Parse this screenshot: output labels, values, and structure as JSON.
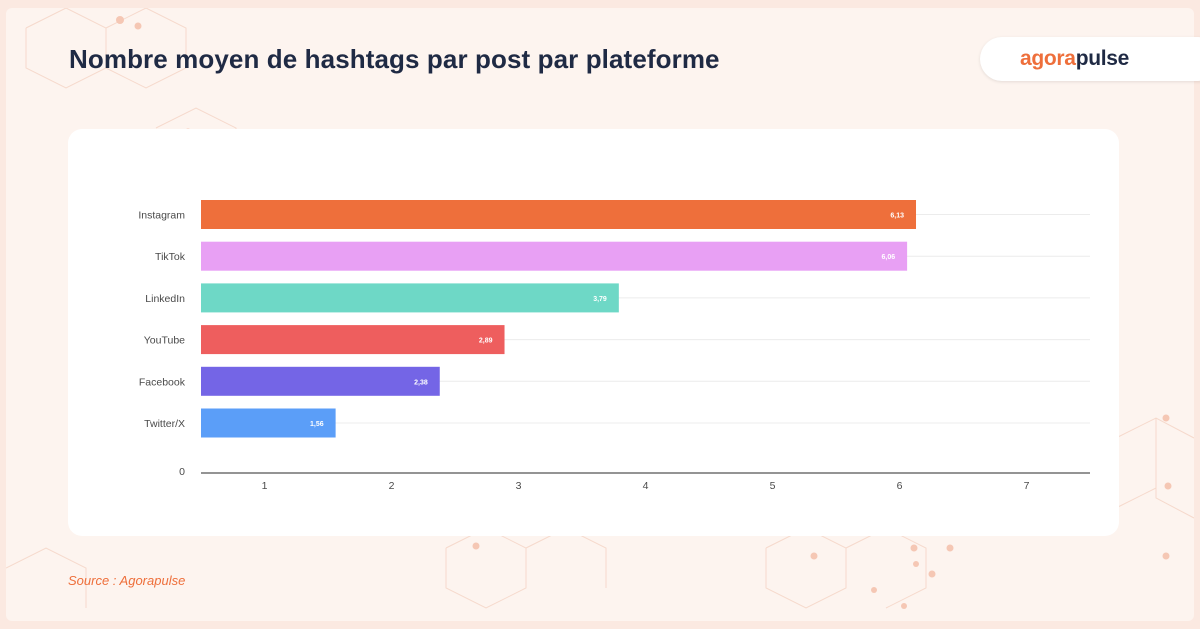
{
  "header": {
    "title": "Nombre moyen de hashtags par post par plateforme"
  },
  "logo": {
    "part1": "agora",
    "part2": "pulse",
    "color_part1": "#ee6f3b",
    "color_part2": "#1f2a44"
  },
  "footer": {
    "source": "Source : Agorapulse"
  },
  "chart_data": {
    "type": "bar",
    "orientation": "horizontal",
    "title": "",
    "xlabel": "",
    "ylabel": "",
    "xlim": [
      0.5,
      7.5
    ],
    "x_ticks": [
      "1",
      "2",
      "3",
      "4",
      "5",
      "6",
      "7"
    ],
    "y_zero_label": "0",
    "grid": true,
    "legend": "none",
    "categories": [
      "Instagram",
      "TikTok",
      "LinkedIn",
      "YouTube",
      "Facebook",
      "Twitter/X"
    ],
    "values": [
      6.13,
      6.06,
      3.79,
      2.89,
      2.38,
      1.56
    ],
    "value_labels": [
      "6,13",
      "6,06",
      "3,79",
      "2,89",
      "2,38",
      "1,56"
    ],
    "colors": [
      "#ee6f3b",
      "#e8a0f4",
      "#6ed8c6",
      "#ee5e5e",
      "#7465e6",
      "#5b9ef8"
    ]
  }
}
